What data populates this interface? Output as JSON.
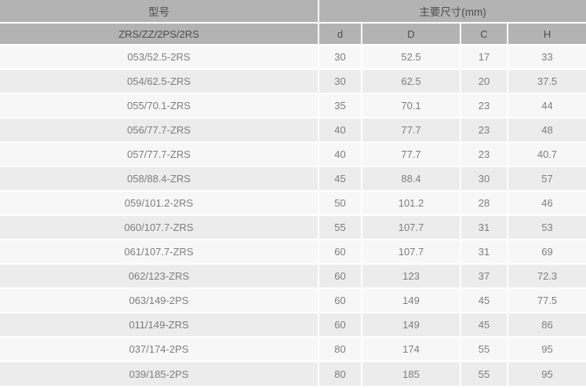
{
  "table": {
    "header": {
      "model_group_label": "型号",
      "dims_group_label": "主要尺寸(mm)",
      "model_sub_label": "ZRS/ZZ/2PS/2RS",
      "dim_columns": [
        "d",
        "D",
        "C",
        "H"
      ]
    },
    "rows": [
      {
        "model": "053/52.5-2RS",
        "d": "30",
        "D": "52.5",
        "C": "17",
        "H": "33"
      },
      {
        "model": "054/62.5-ZRS",
        "d": "30",
        "D": "62.5",
        "C": "20",
        "H": "37.5"
      },
      {
        "model": "055/70.1-ZRS",
        "d": "35",
        "D": "70.1",
        "C": "23",
        "H": "44"
      },
      {
        "model": "056/77.7-ZRS",
        "d": "40",
        "D": "77.7",
        "C": "23",
        "H": "48"
      },
      {
        "model": "057/77.7-ZRS",
        "d": "40",
        "D": "77.7",
        "C": "23",
        "H": "40.7"
      },
      {
        "model": "058/88.4-ZRS",
        "d": "45",
        "D": "88.4",
        "C": "30",
        "H": "57"
      },
      {
        "model": "059/101.2-2RS",
        "d": "50",
        "D": "101.2",
        "C": "28",
        "H": "46"
      },
      {
        "model": "060/107.7-ZRS",
        "d": "55",
        "D": "107.7",
        "C": "31",
        "H": "53"
      },
      {
        "model": "061/107.7-ZRS",
        "d": "60",
        "D": "107.7",
        "C": "31",
        "H": "69"
      },
      {
        "model": "062/123-ZRS",
        "d": "60",
        "D": "123",
        "C": "37",
        "H": "72.3"
      },
      {
        "model": "063/149-2PS",
        "d": "60",
        "D": "149",
        "C": "45",
        "H": "77.5"
      },
      {
        "model": "011/149-ZRS",
        "d": "60",
        "D": "149",
        "C": "45",
        "H": "86"
      },
      {
        "model": "037/174-2PS",
        "d": "80",
        "D": "174",
        "C": "55",
        "H": "95"
      },
      {
        "model": "039/185-2PS",
        "d": "80",
        "D": "185",
        "C": "55",
        "H": "95"
      }
    ],
    "colors": {
      "header_bg": "#b3b3b3",
      "header_text": "#4d4d4d",
      "row_odd_bg": "#f7f7f7",
      "row_even_bg": "#ececec",
      "row_text": "#7d7d7d",
      "grid_line": "#ffffff"
    }
  }
}
